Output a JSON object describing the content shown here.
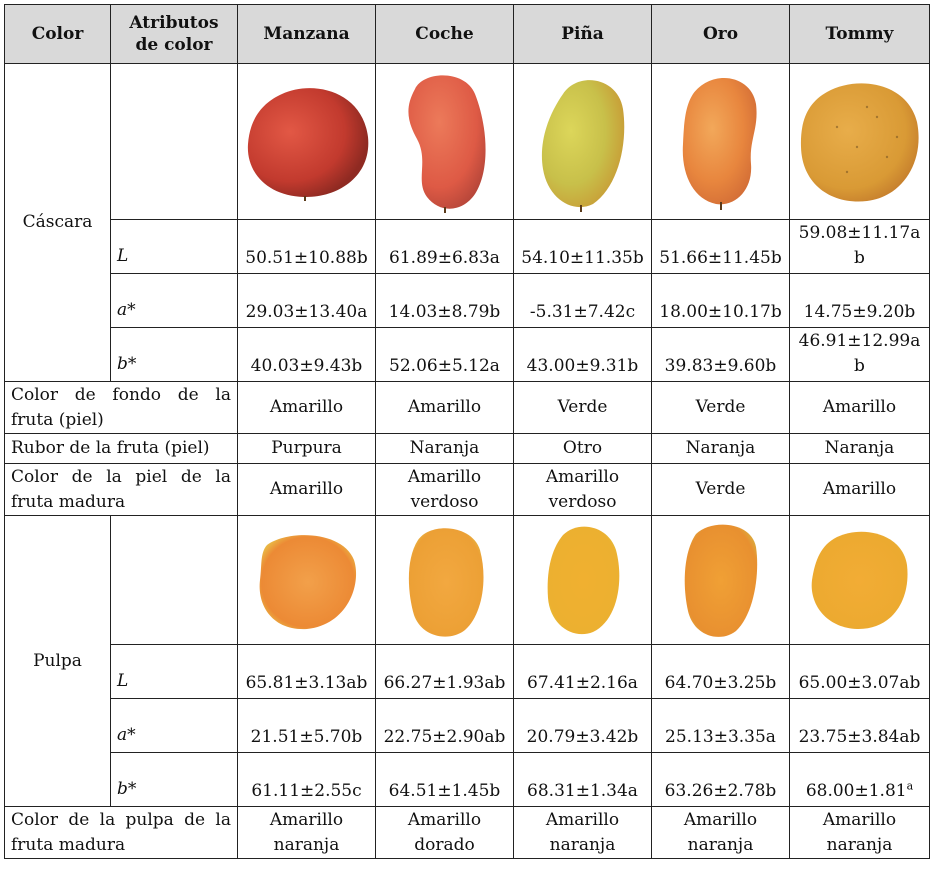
{
  "headers": {
    "color": "Color",
    "attributes": "Atributos de color",
    "varieties": [
      "Manzana",
      "Coche",
      "Piña",
      "Oro",
      "Tommy"
    ]
  },
  "groups": {
    "skin": "Cáscara",
    "pulp": "Pulpa"
  },
  "skin_rows": [
    {
      "attr": "L",
      "values": [
        "50.51±10.88b",
        "61.89±6.83a",
        "54.10±11.35b",
        "51.66±11.45b",
        "59.08±11.17ab"
      ]
    },
    {
      "attr": "a*",
      "values": [
        "29.03±13.40a",
        "14.03±8.79b",
        "-5.31±7.42c",
        "18.00±10.17b",
        "14.75±9.20b"
      ]
    },
    {
      "attr": "b*",
      "values": [
        "40.03±9.43b",
        "52.06±5.12a",
        "43.00±9.31b",
        "39.83±9.60b",
        "46.91±12.99ab"
      ]
    }
  ],
  "skin_images": [
    "mango-manzana-icon",
    "mango-coche-icon",
    "mango-pina-icon",
    "mango-oro-icon",
    "mango-tommy-icon"
  ],
  "fruit_rows": [
    {
      "label": "Color de fondo de la fruta (piel)",
      "values": [
        "Amarillo",
        "Amarillo",
        "Verde",
        "Verde",
        "Amarillo"
      ]
    },
    {
      "label": "Rubor de la fruta (piel)",
      "values": [
        "Purpura",
        "Naranja",
        "Otro",
        "Naranja",
        "Naranja"
      ]
    },
    {
      "label": "Color de la piel de la fruta madura",
      "values": [
        "Amarillo",
        "Amarillo verdoso",
        "Amarillo verdoso",
        "Verde",
        "Amarillo"
      ]
    }
  ],
  "pulp_images": [
    "pulp-manzana-icon",
    "pulp-coche-icon",
    "pulp-pina-icon",
    "pulp-oro-icon",
    "pulp-tommy-icon"
  ],
  "pulp_rows": [
    {
      "attr": "L",
      "values": [
        "65.81±3.13ab",
        "66.27±1.93ab",
        "67.41±2.16a",
        "64.70±3.25b",
        "65.00±3.07ab"
      ]
    },
    {
      "attr": "a*",
      "values": [
        "21.51±5.70b",
        "22.75±2.90ab",
        "20.79±3.42b",
        "25.13±3.35a",
        "23.75±3.84ab"
      ]
    },
    {
      "attr": "b*",
      "values": [
        "61.11±2.55c",
        "64.51±1.45b",
        "68.31±1.34a",
        "63.26±2.78b",
        "68.00±1.81"
      ]
    }
  ],
  "pulp_last_superscript": "a",
  "final_row": {
    "label": "Color de la pulpa de la fruta madura",
    "values": [
      "Amarillo naranja",
      "Amarillo dorado",
      "Amarillo naranja",
      "Amarillo naranja",
      "Amarillo naranja"
    ]
  },
  "colors": {
    "header_bg": "#d9d9d9",
    "manzana_skin": "#c8443a",
    "coche_skin": "#e0614a",
    "pina_skin": "#c8c24a",
    "oro_skin": "#e8863e",
    "tommy_skin": "#d99a35",
    "pulp_orange": "#f0a52c"
  }
}
